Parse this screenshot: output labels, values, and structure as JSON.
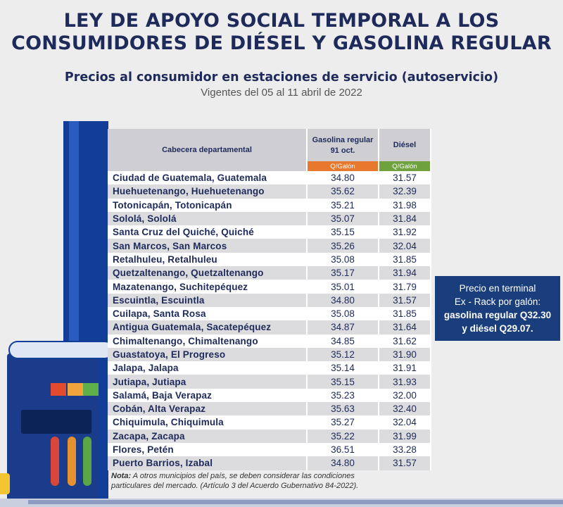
{
  "header": {
    "title_line1": "LEY DE APOYO SOCIAL TEMPORAL A LOS",
    "title_line2": "CONSUMIDORES DE DIÉSEL Y GASOLINA REGULAR",
    "subtitle": "Precios al consumidor en estaciones de servicio (autoservicio)",
    "validity": "Vigentes del 05 al 11 abril de 2022"
  },
  "table": {
    "col_place": "Cabecera departamental",
    "col_gas": "Gasolina regular 91 oct.",
    "col_diesel": "Diésel",
    "unit_gas": "Q/Galón",
    "unit_diesel": "Q/Galón",
    "rows": [
      {
        "place": "Ciudad de Guatemala, Guatemala",
        "gas": "34.80",
        "diesel": "31.57"
      },
      {
        "place": "Huehuetenango, Huehuetenango",
        "gas": "35.62",
        "diesel": "32.39"
      },
      {
        "place": "Totonicapán, Totonicapán",
        "gas": "35.21",
        "diesel": "31.98"
      },
      {
        "place": "Sololá, Sololá",
        "gas": "35.07",
        "diesel": "31.84"
      },
      {
        "place": "Santa Cruz del Quiché, Quiché",
        "gas": "35.15",
        "diesel": "31.92"
      },
      {
        "place": "San Marcos, San Marcos",
        "gas": "35.26",
        "diesel": "32.04"
      },
      {
        "place": "Retalhuleu, Retalhuleu",
        "gas": "35.08",
        "diesel": "31.85"
      },
      {
        "place": "Quetzaltenango, Quetzaltenango",
        "gas": "35.17",
        "diesel": "31.94"
      },
      {
        "place": "Mazatenango, Suchitepéquez",
        "gas": "35.01",
        "diesel": "31.79"
      },
      {
        "place": "Escuintla, Escuintla",
        "gas": "34.80",
        "diesel": "31.57"
      },
      {
        "place": "Cuilapa, Santa Rosa",
        "gas": "35.08",
        "diesel": "31.85"
      },
      {
        "place": "Antigua Guatemala, Sacatepéquez",
        "gas": "34.87",
        "diesel": "31.64"
      },
      {
        "place": "Chimaltenango, Chimaltenango",
        "gas": "34.85",
        "diesel": "31.62"
      },
      {
        "place": "Guastatoya, El Progreso",
        "gas": "35.12",
        "diesel": "31.90"
      },
      {
        "place": "Jalapa, Jalapa",
        "gas": "35.14",
        "diesel": "31.91"
      },
      {
        "place": "Jutiapa, Jutiapa",
        "gas": "35.15",
        "diesel": "31.93"
      },
      {
        "place": "Salamá, Baja Verapaz",
        "gas": "35.23",
        "diesel": "32.00"
      },
      {
        "place": "Cobán, Alta Verapaz",
        "gas": "35.63",
        "diesel": "32.40"
      },
      {
        "place": "Chiquimula, Chiquimula",
        "gas": "35.27",
        "diesel": "32.04"
      },
      {
        "place": "Zacapa, Zacapa",
        "gas": "35.22",
        "diesel": "31.99"
      },
      {
        "place": "Flores, Petén",
        "gas": "36.51",
        "diesel": "33.28"
      },
      {
        "place": "Puerto Barrios, Izabal",
        "gas": "34.80",
        "diesel": "31.57"
      }
    ]
  },
  "note": {
    "label": "Nota:",
    "line1": " A otros municipios del país, se deben considerar las condiciones",
    "line2": "particulares del mercado.  (Artículo 3 del Acuerdo Gubernativo 84-2022)."
  },
  "terminal_box": {
    "line1": "Precio en terminal",
    "line2": "Ex - Rack por galón:",
    "line3": "gasolina regular Q32.30",
    "line4": "y diésel Q29.07."
  },
  "colors": {
    "navy": "#1e2a5a",
    "orange": "#e8782e",
    "green": "#6fa13c",
    "box_blue": "#1a3e7c",
    "pump_blue": "#123e97"
  },
  "icons": [
    "fuel-pump-illustration"
  ]
}
